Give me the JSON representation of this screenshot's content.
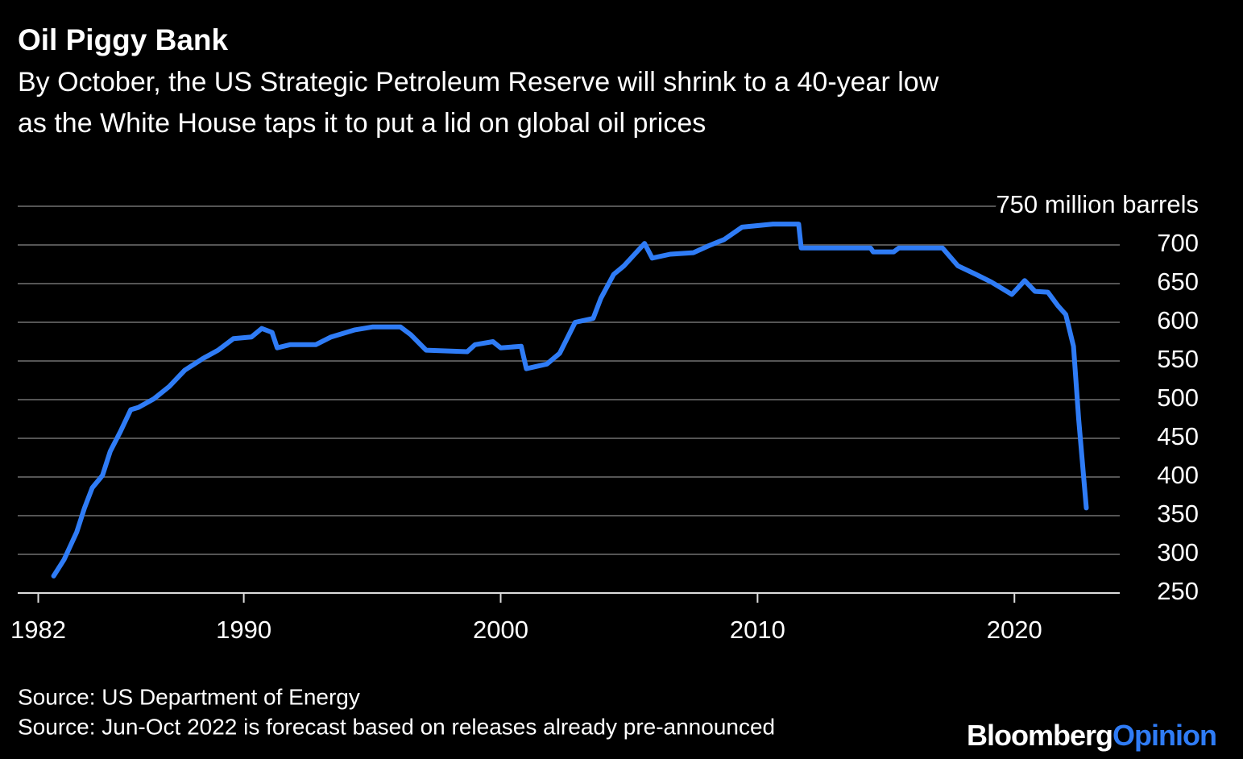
{
  "chart_data": {
    "type": "line",
    "title": "Oil Piggy Bank",
    "subtitle": [
      "By October, the US Strategic Petroleum Reserve will shrink to a 40-year low",
      "as the White House taps it to put a lid on global oil prices"
    ],
    "x": [
      1982.6,
      1983.0,
      1983.5,
      1983.8,
      1984.1,
      1984.5,
      1984.8,
      1985.2,
      1985.6,
      1985.9,
      1986.5,
      1987.1,
      1987.7,
      1988.4,
      1989.0,
      1989.6,
      1990.3,
      1990.7,
      1991.1,
      1991.3,
      1991.8,
      1992.8,
      1993.4,
      1994.3,
      1995.0,
      1996.1,
      1996.5,
      1997.1,
      1998.7,
      1999.0,
      1999.7,
      2000.0,
      2000.8,
      2001.0,
      2001.8,
      2002.3,
      2002.9,
      2003.6,
      2003.9,
      2004.4,
      2004.8,
      2005.6,
      2005.9,
      2006.6,
      2007.5,
      2008.1,
      2008.7,
      2009.4,
      2010.6,
      2011.6,
      2011.7,
      2014.4,
      2014.5,
      2015.3,
      2015.5,
      2017.2,
      2017.8,
      2018.5,
      2019.1,
      2019.9,
      2020.4,
      2020.8,
      2021.3,
      2021.7,
      2022.0,
      2022.3,
      2022.5,
      2022.8
    ],
    "values": [
      272,
      293,
      329,
      360,
      386,
      402,
      433,
      459,
      487,
      490,
      501,
      517,
      538,
      553,
      564,
      579,
      581,
      592,
      587,
      567,
      571,
      571,
      581,
      590,
      594,
      594,
      584,
      564,
      562,
      571,
      575,
      567,
      569,
      540,
      546,
      560,
      600,
      605,
      631,
      662,
      673,
      702,
      683,
      688,
      690,
      699,
      707,
      723,
      727,
      727,
      696,
      696,
      691,
      691,
      696,
      696,
      673,
      662,
      652,
      636,
      654,
      640,
      639,
      621,
      610,
      569,
      475,
      360
    ],
    "color": "#2f7cf6",
    "xlim": [
      1981.2,
      2024.1
    ],
    "xticks": [
      1982,
      1990,
      2000,
      2010,
      2020
    ],
    "ylim": [
      250,
      750
    ],
    "yticks": [
      250,
      300,
      350,
      400,
      450,
      500,
      550,
      600,
      650,
      700,
      {
        "value": 750,
        "label": "750 million barrels"
      }
    ],
    "grid": true,
    "source": [
      "Source: US Department of Energy",
      "Source: Jun-Oct 2022 is forecast based on releases already pre-announced"
    ],
    "logo": [
      "Bloomberg",
      "Opinion"
    ]
  }
}
